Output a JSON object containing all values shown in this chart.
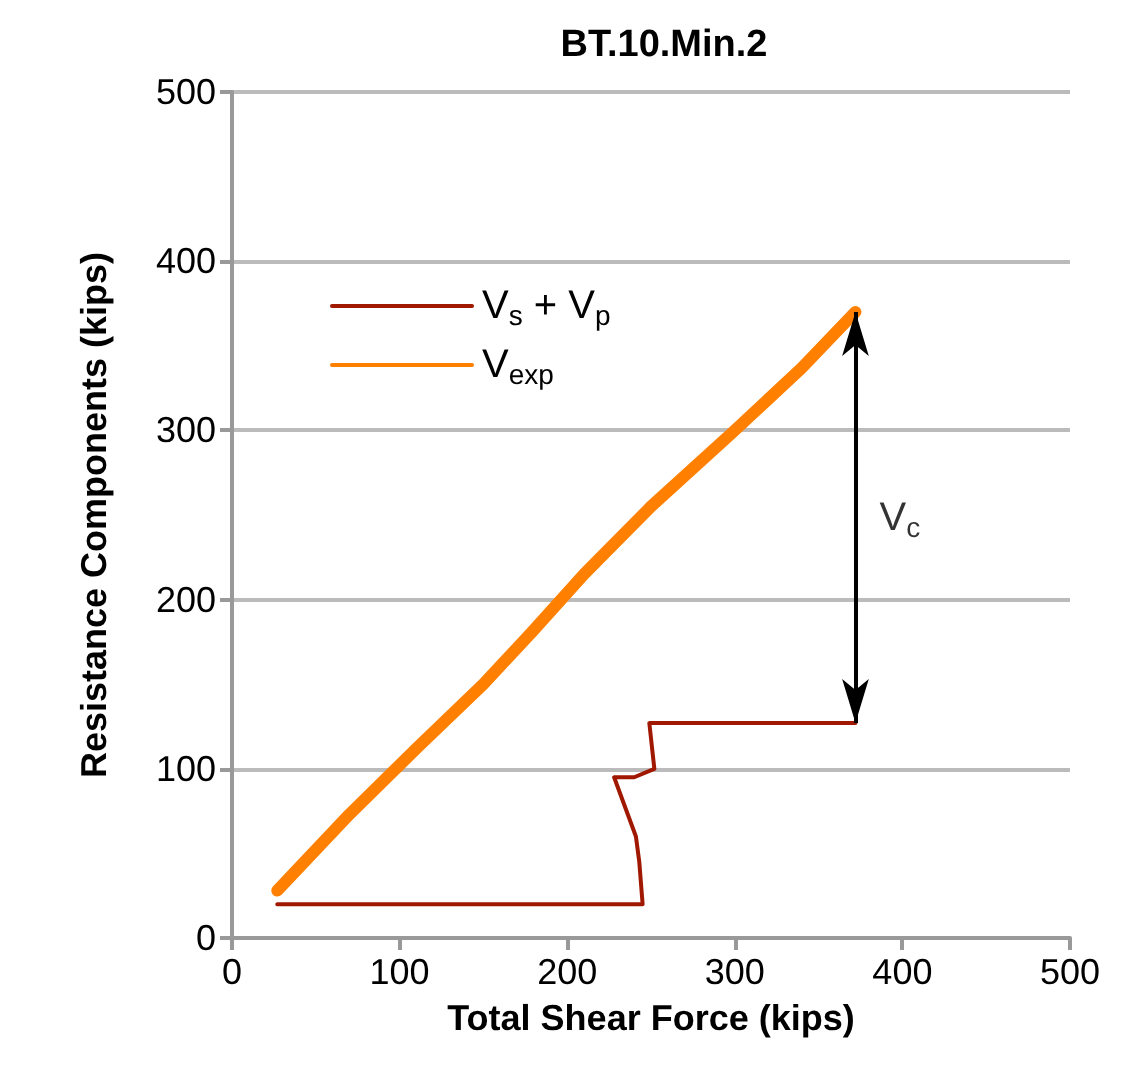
{
  "chart_data": {
    "type": "line",
    "title": "BT.10.Min.2",
    "xlabel": "Total Shear Force (kips)",
    "ylabel": "Resistance Components (kips)",
    "series": [
      {
        "name": "V$_{s}$ + V$_{p}$",
        "color": "#a01800",
        "x": [
          27,
          245,
          243,
          241,
          228,
          240,
          252,
          249,
          372
        ],
        "values": [
          20,
          20,
          45,
          60,
          95,
          95,
          100,
          127,
          127
        ]
      },
      {
        "name": "V$_{exp}$",
        "color": "#ff8000",
        "x": [
          27,
          70,
          110,
          150,
          180,
          210,
          250,
          300,
          340,
          372
        ],
        "values": [
          28,
          73,
          112,
          150,
          182,
          215,
          255,
          300,
          337,
          370
        ]
      }
    ],
    "annotations": [
      "V$_{c}$"
    ],
    "xlim": [
      0,
      500
    ],
    "xticks": [
      0,
      100,
      200,
      300,
      400,
      500
    ],
    "ylim": [
      0,
      500
    ],
    "yticks": [
      0,
      100,
      200,
      300,
      400,
      500
    ],
    "grid": "y",
    "legend": "top left",
    "marker": "none",
    "line_style": "solid"
  }
}
